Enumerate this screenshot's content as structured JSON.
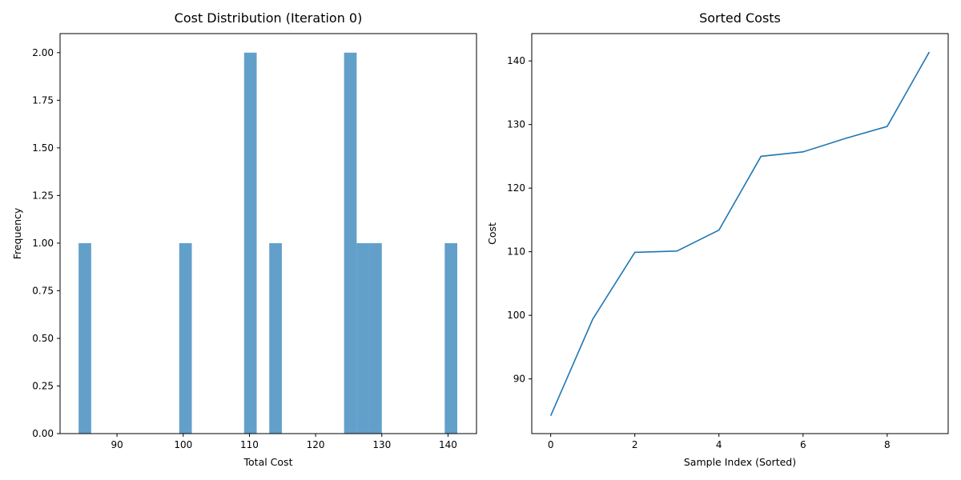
{
  "chart_data": [
    {
      "type": "bar",
      "title": "Cost Distribution (Iteration 0)",
      "xlabel": "Total Cost",
      "ylabel": "Frequency",
      "xlim": [
        81.4,
        144.3
      ],
      "ylim": [
        0,
        2.1
      ],
      "xticks": [
        90,
        100,
        110,
        120,
        130,
        140
      ],
      "yticks": [
        0.0,
        0.25,
        0.5,
        0.75,
        1.0,
        1.25,
        1.5,
        1.75,
        2.0
      ],
      "ytick_labels": [
        "0.00",
        "0.25",
        "0.50",
        "0.75",
        "1.00",
        "1.25",
        "1.50",
        "1.75",
        "2.00"
      ],
      "bar_color": "#1f77b4",
      "bar_opacity": 0.7,
      "bins": [
        {
          "x0": 84.2,
          "x1": 86.1,
          "count": 1
        },
        {
          "x0": 99.4,
          "x1": 101.3,
          "count": 1
        },
        {
          "x0": 109.2,
          "x1": 111.1,
          "count": 2
        },
        {
          "x0": 113.0,
          "x1": 114.9,
          "count": 1
        },
        {
          "x0": 124.3,
          "x1": 126.2,
          "count": 2
        },
        {
          "x0": 126.2,
          "x1": 128.1,
          "count": 1
        },
        {
          "x0": 128.1,
          "x1": 130.0,
          "count": 1
        },
        {
          "x0": 139.5,
          "x1": 141.4,
          "count": 1
        }
      ]
    },
    {
      "type": "line",
      "title": "Sorted Costs",
      "xlabel": "Sample Index (Sorted)",
      "ylabel": "Cost",
      "xlim": [
        -0.45,
        9.45
      ],
      "ylim": [
        81.4,
        144.3
      ],
      "xticks": [
        0,
        2,
        4,
        6,
        8
      ],
      "yticks": [
        90,
        100,
        110,
        120,
        130,
        140
      ],
      "line_color": "#1f77b4",
      "x": [
        0,
        1,
        2,
        3,
        4,
        5,
        6,
        7,
        8,
        9
      ],
      "y": [
        84.2,
        99.4,
        109.9,
        110.1,
        113.4,
        125.0,
        125.7,
        127.8,
        129.7,
        141.4
      ]
    }
  ]
}
